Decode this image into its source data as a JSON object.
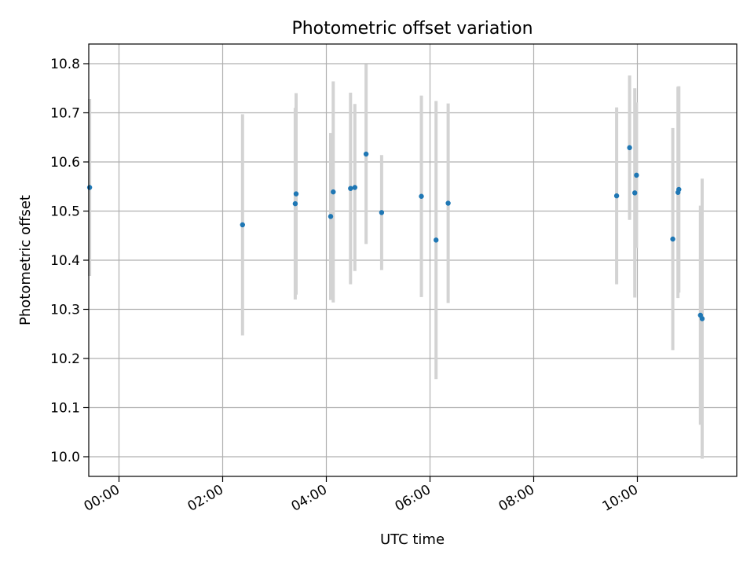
{
  "chart_data": {
    "type": "scatter",
    "title": "Photometric offset variation",
    "xlabel": "UTC time",
    "ylabel": "Photometric offset",
    "grid": true,
    "x_ticks": [
      "00:00",
      "02:00",
      "04:00",
      "06:00",
      "08:00",
      "10:00"
    ],
    "y_ticks": [
      "10.0",
      "10.1",
      "10.2",
      "10.3",
      "10.4",
      "10.5",
      "10.6",
      "10.7",
      "10.8"
    ],
    "xlim": [
      "23:25",
      "11:55"
    ],
    "ylim": [
      9.96,
      10.84
    ],
    "point_color": "#1f77b4",
    "errorbar_color": "#d3d3d3",
    "points": [
      {
        "x": "23:26",
        "y": 10.548,
        "err": 0.18
      },
      {
        "x": "02:23",
        "y": 10.472,
        "err": 0.225
      },
      {
        "x": "03:24",
        "y": 10.515,
        "err": 0.195
      },
      {
        "x": "03:25",
        "y": 10.535,
        "err": 0.205
      },
      {
        "x": "04:05",
        "y": 10.489,
        "err": 0.17
      },
      {
        "x": "04:08",
        "y": 10.539,
        "err": 0.225
      },
      {
        "x": "04:28",
        "y": 10.546,
        "err": 0.195
      },
      {
        "x": "04:33",
        "y": 10.548,
        "err": 0.17
      },
      {
        "x": "04:46",
        "y": 10.616,
        "err": 0.183
      },
      {
        "x": "05:04",
        "y": 10.497,
        "err": 0.117
      },
      {
        "x": "05:50",
        "y": 10.53,
        "err": 0.205
      },
      {
        "x": "06:07",
        "y": 10.441,
        "err": 0.283
      },
      {
        "x": "06:21",
        "y": 10.516,
        "err": 0.203
      },
      {
        "x": "09:36",
        "y": 10.531,
        "err": 0.18
      },
      {
        "x": "09:51",
        "y": 10.629,
        "err": 0.147
      },
      {
        "x": "09:57",
        "y": 10.537,
        "err": 0.213
      },
      {
        "x": "09:59",
        "y": 10.573,
        "err": 0.148
      },
      {
        "x": "10:41",
        "y": 10.443,
        "err": 0.226
      },
      {
        "x": "10:47",
        "y": 10.538,
        "err": 0.215
      },
      {
        "x": "10:48",
        "y": 10.544,
        "err": 0.21
      },
      {
        "x": "11:13",
        "y": 10.288,
        "err": 0.223
      },
      {
        "x": "11:15",
        "y": 10.281,
        "err": 0.285
      }
    ]
  }
}
